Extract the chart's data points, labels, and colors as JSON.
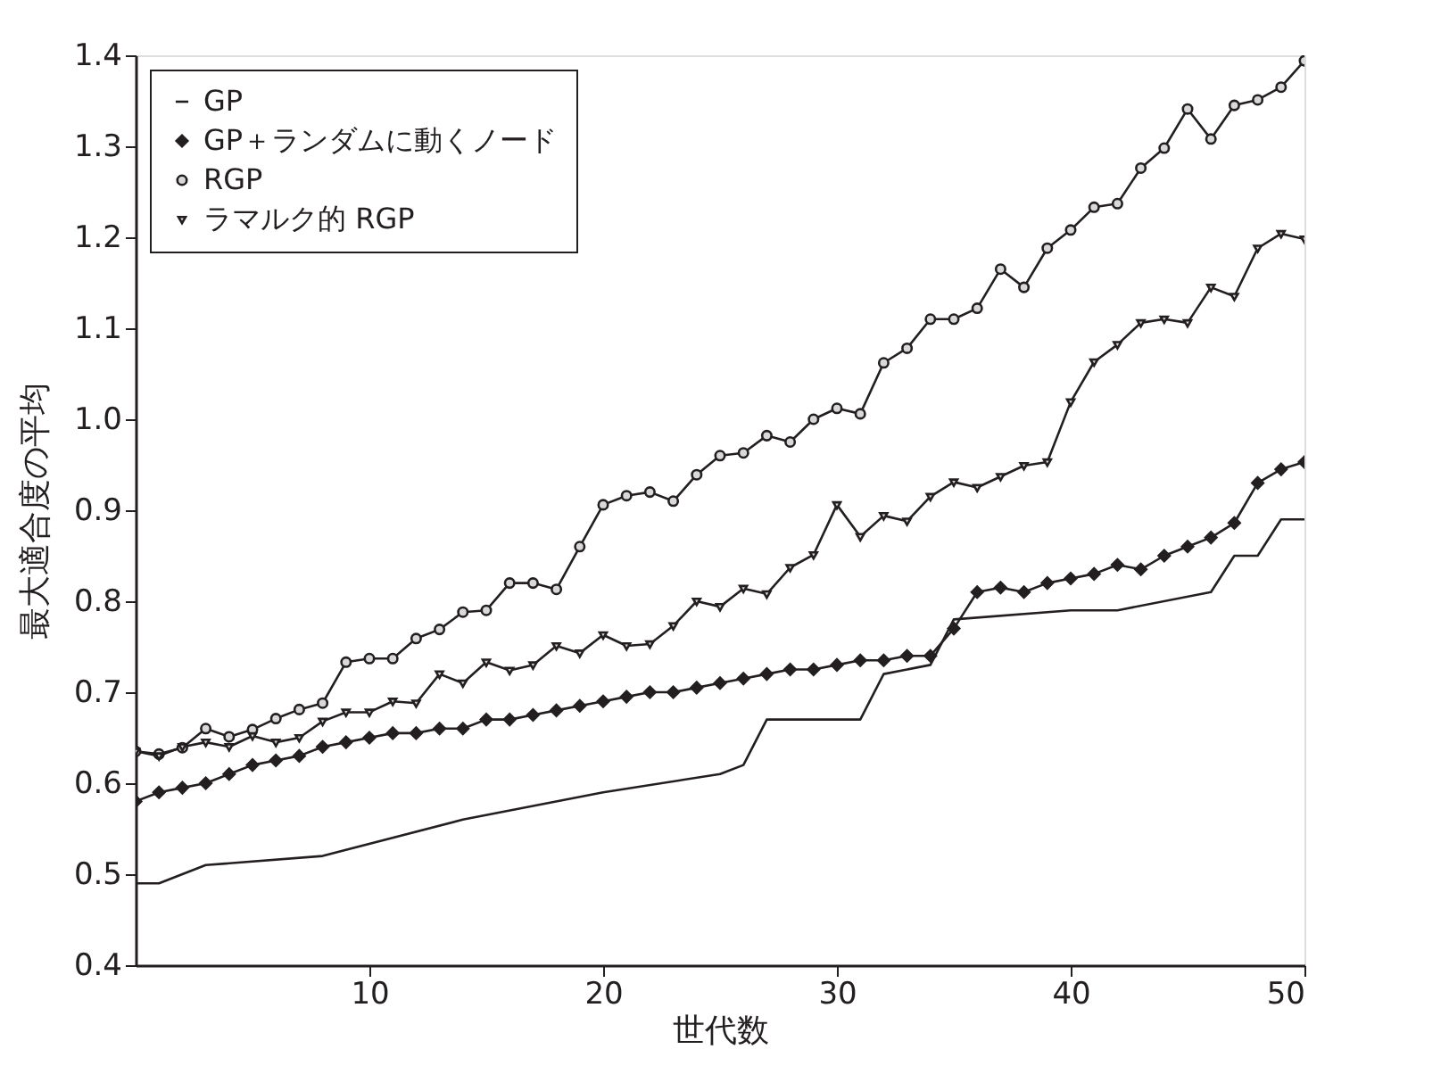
{
  "chart_data": {
    "type": "line",
    "xlabel": "世代数",
    "ylabel": "最大適合度の平均",
    "xlim": [
      0,
      50
    ],
    "xticks": [
      10,
      20,
      30,
      40,
      50
    ],
    "ylim": [
      0.4,
      1.4
    ],
    "yticks": [
      0.4,
      0.5,
      0.6,
      0.7,
      0.8,
      0.9,
      {
        "value": 1.0,
        "label": "1.0"
      },
      1.1,
      1.2,
      1.3,
      1.4
    ],
    "grid": false,
    "legend": "top left",
    "series": [
      {
        "name": "GP",
        "color": "#231f20",
        "marker": "none",
        "x": [
          0,
          1,
          2,
          3,
          8,
          14,
          20,
          25,
          26,
          27,
          31,
          32,
          34,
          35,
          40,
          42,
          46,
          47,
          48,
          49,
          50
        ],
        "values": [
          0.49,
          0.49,
          0.5,
          0.51,
          0.52,
          0.56,
          0.59,
          0.61,
          0.62,
          0.67,
          0.67,
          0.72,
          0.73,
          0.78,
          0.79,
          0.79,
          0.81,
          0.85,
          0.85,
          0.89,
          0.89
        ]
      },
      {
        "name": "GP＋ランダムに動くノード",
        "color": "#231f20",
        "marker": "diamond",
        "x": [
          0,
          1,
          2,
          3,
          4,
          5,
          6,
          7,
          8,
          9,
          10,
          11,
          12,
          13,
          14,
          15,
          16,
          17,
          18,
          19,
          20,
          21,
          22,
          23,
          24,
          25,
          26,
          27,
          28,
          29,
          30,
          31,
          32,
          33,
          34,
          35,
          36,
          37,
          38,
          39,
          40,
          41,
          42,
          43,
          44,
          45,
          46,
          47,
          48,
          49,
          50
        ],
        "values": [
          0.58,
          0.59,
          0.595,
          0.6,
          0.61,
          0.62,
          0.625,
          0.63,
          0.64,
          0.645,
          0.65,
          0.655,
          0.655,
          0.66,
          0.66,
          0.67,
          0.67,
          0.675,
          0.68,
          0.685,
          0.69,
          0.695,
          0.7,
          0.7,
          0.705,
          0.71,
          0.715,
          0.72,
          0.725,
          0.725,
          0.73,
          0.735,
          0.735,
          0.74,
          0.74,
          0.77,
          0.81,
          0.815,
          0.81,
          0.82,
          0.825,
          0.83,
          0.84,
          0.835,
          0.85,
          0.86,
          0.87,
          0.886,
          0.93,
          0.945,
          0.953
        ]
      },
      {
        "name": "RGP",
        "color": "#231f20",
        "marker": "circle",
        "x": [
          0,
          1,
          2,
          3,
          4,
          5,
          6,
          7,
          8,
          9,
          10,
          11,
          12,
          13,
          14,
          15,
          16,
          17,
          18,
          19,
          20,
          21,
          22,
          23,
          24,
          25,
          26,
          27,
          28,
          29,
          30,
          31,
          32,
          33,
          34,
          35,
          36,
          37,
          38,
          39,
          40,
          41,
          42,
          43,
          44,
          45,
          46,
          47,
          48,
          49,
          50
        ],
        "values": [
          0.635,
          0.632,
          0.639,
          0.66,
          0.651,
          0.659,
          0.671,
          0.681,
          0.688,
          0.733,
          0.737,
          0.737,
          0.759,
          0.769,
          0.788,
          0.79,
          0.82,
          0.82,
          0.813,
          0.86,
          0.906,
          0.916,
          0.92,
          0.91,
          0.939,
          0.96,
          0.963,
          0.982,
          0.975,
          1.0,
          1.012,
          1.006,
          1.062,
          1.078,
          1.11,
          1.11,
          1.122,
          1.165,
          1.145,
          1.188,
          1.208,
          1.233,
          1.237,
          1.276,
          1.298,
          1.341,
          1.308,
          1.345,
          1.351,
          1.365,
          1.394
        ]
      },
      {
        "name": "ラマルク的 RGP",
        "color": "#231f20",
        "marker": "triangle",
        "x": [
          0,
          1,
          2,
          3,
          4,
          5,
          6,
          7,
          8,
          9,
          10,
          11,
          12,
          13,
          14,
          15,
          16,
          17,
          18,
          19,
          20,
          21,
          22,
          23,
          24,
          25,
          26,
          27,
          28,
          29,
          30,
          31,
          32,
          33,
          34,
          35,
          36,
          37,
          38,
          39,
          40,
          41,
          42,
          43,
          44,
          45,
          46,
          47,
          48,
          49,
          50
        ],
        "values": [
          0.635,
          0.63,
          0.64,
          0.645,
          0.64,
          0.652,
          0.645,
          0.65,
          0.668,
          0.678,
          0.678,
          0.69,
          0.688,
          0.72,
          0.71,
          0.733,
          0.724,
          0.73,
          0.751,
          0.743,
          0.763,
          0.751,
          0.753,
          0.773,
          0.8,
          0.794,
          0.814,
          0.808,
          0.837,
          0.851,
          0.906,
          0.871,
          0.894,
          0.888,
          0.915,
          0.931,
          0.925,
          0.937,
          0.949,
          0.953,
          1.019,
          1.063,
          1.082,
          1.106,
          1.11,
          1.106,
          1.145,
          1.135,
          1.188,
          1.204,
          1.198
        ]
      }
    ]
  }
}
